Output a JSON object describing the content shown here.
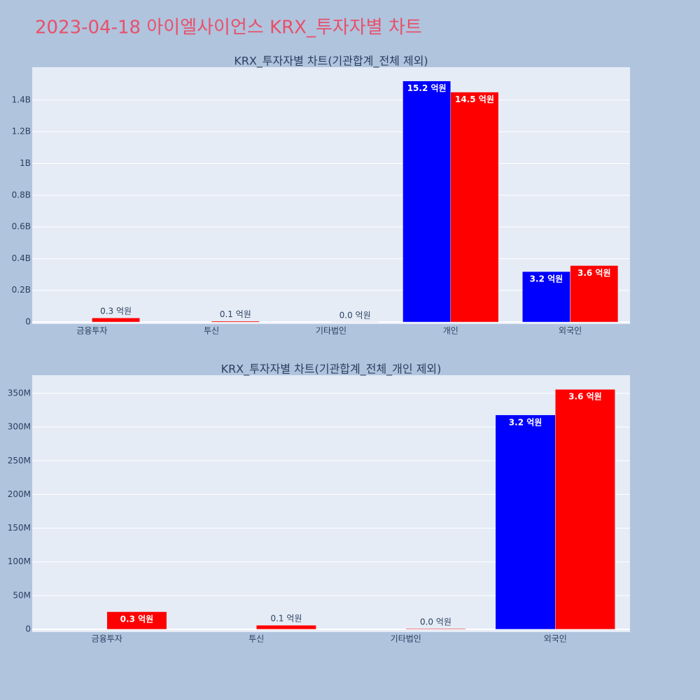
{
  "title": "2023-04-18 아이엘사이언스 KRX_투자자별 차트",
  "chart_data": [
    {
      "type": "bar",
      "title": "KRX_투자자별 차트(기관합계_전체 제외)",
      "categories": [
        "금융투자",
        "투신",
        "기타법인",
        "개인",
        "외국인"
      ],
      "series": [
        {
          "color": "#0000ff",
          "values": [
            null,
            null,
            null,
            1520000000,
            318000000
          ],
          "value_labels": [
            null,
            null,
            null,
            "15.2 억원",
            "3.2 억원"
          ]
        },
        {
          "color": "#ff0000",
          "values": [
            26000000,
            6000000,
            1000000,
            1450000000,
            356000000
          ],
          "value_labels": [
            "0.3 억원",
            "0.1 억원",
            "0.0 억원",
            "14.5 억원",
            "3.6 억원"
          ]
        }
      ],
      "ylim": [
        -13000000,
        1607000000
      ],
      "yticks": [
        0,
        {
          "value": 200000000,
          "label": "0.2B"
        },
        {
          "value": 400000000,
          "label": "0.4B"
        },
        {
          "value": 600000000,
          "label": "0.6B"
        },
        {
          "value": 800000000,
          "label": "0.8B"
        },
        {
          "value": 1000000000,
          "label": "1B"
        },
        {
          "value": 1200000000,
          "label": "1.2B"
        },
        {
          "value": 1400000000,
          "label": "1.4B"
        }
      ],
      "grid": true
    },
    {
      "type": "bar",
      "title": "KRX_투자자별 차트(기관합계_전체_개인 제외)",
      "categories": [
        "금융투자",
        "투신",
        "기타법인",
        "외국인"
      ],
      "series": [
        {
          "color": "#0000ff",
          "values": [
            null,
            null,
            null,
            318000000
          ],
          "value_labels": [
            null,
            null,
            null,
            "3.2 억원"
          ]
        },
        {
          "color": "#ff0000",
          "values": [
            26000000,
            6000000,
            1000000,
            356000000
          ],
          "value_labels": [
            "0.3 억원",
            "0.1 억원",
            "0.0 억원",
            "3.6 억원"
          ]
        }
      ],
      "ylim": [
        -4200000,
        377000000
      ],
      "yticks": [
        0,
        {
          "value": 50000000,
          "label": "50M"
        },
        {
          "value": 100000000,
          "label": "100M"
        },
        {
          "value": 150000000,
          "label": "150M"
        },
        {
          "value": 200000000,
          "label": "200M"
        },
        {
          "value": 250000000,
          "label": "250M"
        },
        {
          "value": 300000000,
          "label": "300M"
        },
        {
          "value": 350000000,
          "label": "350M"
        }
      ],
      "grid": true
    }
  ]
}
